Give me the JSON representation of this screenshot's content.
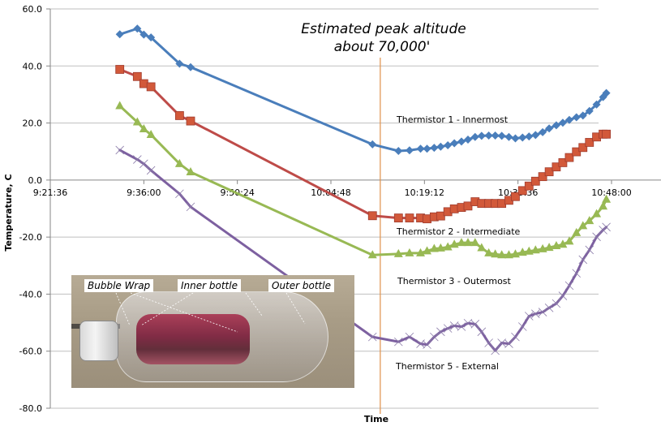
{
  "chart_data": {
    "type": "line",
    "title": "",
    "xlabel": "Time",
    "ylabel": "Temperature, C",
    "ylim": [
      -80,
      60
    ],
    "yticks": [
      60,
      40,
      20,
      0,
      -20,
      -40,
      -60,
      -80
    ],
    "ytick_labels": [
      "60.0",
      "40.0",
      "20.0",
      "0.0",
      "-20.0",
      "-40.0",
      "-60.0",
      "-80.0"
    ],
    "x_unit": "minutes after 9:21:36",
    "xlim": [
      0,
      86.4
    ],
    "xticks": [
      0,
      14.4,
      28.8,
      43.2,
      57.6,
      72.0,
      86.4
    ],
    "xtick_labels": [
      "9:21:36",
      "9:36:00",
      "9:50:24",
      "10:04:48",
      "10:19:12",
      "10:33:36",
      "10:48:00"
    ],
    "grid": true,
    "legend": "inline labels",
    "x": [
      10.7,
      13.4,
      14.4,
      15.5,
      19.9,
      21.6,
      49.6,
      53.6,
      55.3,
      57.0,
      58.0,
      59.1,
      60.1,
      61.2,
      62.2,
      63.3,
      64.3,
      65.4,
      66.4,
      67.5,
      68.5,
      69.5,
      70.6,
      71.6,
      72.7,
      73.7,
      74.7,
      75.8,
      76.8,
      77.9,
      78.9,
      79.9,
      81.0,
      82.0,
      83.0,
      84.1,
      85.1,
      85.6
    ],
    "series": [
      {
        "name": "Thermistor 1 - Innermost",
        "color": "#4a7ebb",
        "marker": "diamond",
        "values": [
          51.1,
          53.1,
          51.0,
          50.0,
          40.8,
          39.6,
          12.5,
          10.2,
          10.4,
          11.0,
          11.0,
          11.3,
          11.7,
          12.2,
          12.9,
          13.5,
          14.2,
          15.1,
          15.5,
          15.6,
          15.6,
          15.5,
          15.1,
          14.6,
          14.9,
          15.3,
          15.8,
          16.8,
          18.1,
          19.2,
          20.1,
          21.1,
          22.0,
          22.6,
          24.2,
          26.5,
          29.1,
          30.5
        ]
      },
      {
        "name": "Thermistor 2 - Intermediate",
        "color": "#be4b48",
        "marker": "square",
        "values": [
          38.8,
          36.3,
          33.8,
          32.7,
          22.6,
          20.7,
          -12.5,
          -13.3,
          -13.3,
          -13.3,
          -13.6,
          -12.9,
          -12.6,
          -11.1,
          -10.1,
          -9.6,
          -9.1,
          -7.6,
          -8.2,
          -8.2,
          -8.2,
          -8.2,
          -7.1,
          -5.8,
          -3.7,
          -2.1,
          -0.4,
          1.2,
          2.9,
          4.6,
          6.1,
          7.9,
          9.9,
          11.4,
          13.2,
          15.1,
          16.1,
          16.1
        ]
      },
      {
        "name": "Thermistor 3 - Outermost",
        "color": "#98b954",
        "marker": "triangle",
        "values": [
          26.0,
          20.3,
          17.9,
          15.9,
          5.7,
          2.8,
          -26.3,
          -25.9,
          -25.6,
          -25.6,
          -24.9,
          -24.1,
          -23.9,
          -23.5,
          -22.6,
          -22.0,
          -22.0,
          -22.0,
          -23.8,
          -25.6,
          -26.0,
          -26.3,
          -26.3,
          -26.0,
          -25.4,
          -25.0,
          -24.6,
          -24.2,
          -23.7,
          -23.1,
          -22.6,
          -21.5,
          -18.5,
          -16.1,
          -14.3,
          -11.9,
          -9.2,
          -6.8
        ]
      },
      {
        "name": "Thermistor 5 - External",
        "color": "#7d60a0",
        "marker": "x",
        "values": [
          10.5,
          7.2,
          5.7,
          3.4,
          -4.8,
          -9.4,
          -55.0,
          -56.7,
          -55.0,
          -57.4,
          -57.7,
          -55.0,
          -53.2,
          -52.0,
          -51.1,
          -51.4,
          -50.2,
          -50.5,
          -53.2,
          -57.1,
          -59.8,
          -57.1,
          -57.4,
          -55.0,
          -51.4,
          -47.7,
          -46.9,
          -46.3,
          -44.8,
          -43.3,
          -40.6,
          -37.0,
          -32.7,
          -27.9,
          -24.5,
          -19.9,
          -17.5,
          -16.5
        ]
      }
    ],
    "annotations": [
      {
        "text_lines": [
          "Estimated peak altitude",
          "about 70,000'"
        ],
        "x": 50.8,
        "style": "vertical-line",
        "color": "#e0914a"
      }
    ]
  },
  "inset_photo": {
    "labels": [
      "Bubble Wrap",
      "Inner bottle",
      "Outer bottle"
    ]
  }
}
